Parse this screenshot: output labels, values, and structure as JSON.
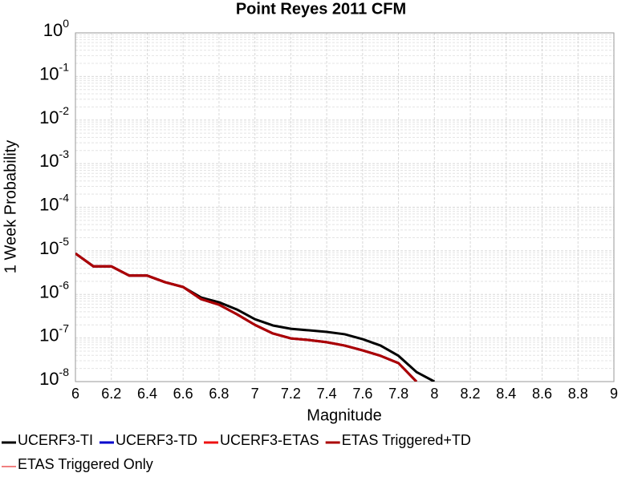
{
  "chart_data": {
    "type": "line",
    "title": "Point Reyes 2011 CFM",
    "x_label": "Magnitude",
    "y_label": "1 Week Probability",
    "x": [
      6.0,
      6.1,
      6.2,
      6.3,
      6.4,
      6.5,
      6.6,
      6.7,
      6.8,
      6.9,
      7.0,
      7.1,
      7.2,
      7.3,
      7.4,
      7.5,
      7.6,
      7.7,
      7.8,
      7.9,
      8.0
    ],
    "series": [
      {
        "name": "UCERF3-TI",
        "color": "#000000",
        "values": [
          8.7e-06,
          4.4e-06,
          4.4e-06,
          2.7e-06,
          2.7e-06,
          1.9e-06,
          1.48e-06,
          8.5e-07,
          6.6e-07,
          4.5e-07,
          2.7e-07,
          1.94e-07,
          1.63e-07,
          1.5e-07,
          1.38e-07,
          1.22e-07,
          9.4e-08,
          6.7e-08,
          3.9e-08,
          1.66e-08,
          1e-08
        ]
      },
      {
        "name": "UCERF3-TD",
        "color": "#0000cc",
        "values": [
          8.7e-06,
          4.4e-06,
          4.4e-06,
          2.7e-06,
          2.7e-06,
          1.9e-06,
          1.48e-06,
          7.8e-07,
          5.8e-07,
          3.5e-07,
          2e-07,
          1.27e-07,
          9.8e-08,
          9e-08,
          8e-08,
          6.7e-08,
          5.2e-08,
          3.9e-08,
          2.65e-08,
          1e-08,
          null
        ]
      },
      {
        "name": "UCERF3-ETAS",
        "color": "#ee1111",
        "values": [
          8.7e-06,
          4.4e-06,
          4.4e-06,
          2.7e-06,
          2.7e-06,
          1.9e-06,
          1.48e-06,
          7.8e-07,
          5.8e-07,
          3.5e-07,
          2e-07,
          1.27e-07,
          9.8e-08,
          9e-08,
          8e-08,
          6.7e-08,
          5.2e-08,
          3.9e-08,
          2.65e-08,
          1e-08,
          null
        ]
      },
      {
        "name": "ETAS Triggered+TD",
        "color": "#aa0000",
        "values": [
          8.7e-06,
          4.4e-06,
          4.4e-06,
          2.7e-06,
          2.7e-06,
          1.9e-06,
          1.48e-06,
          7.8e-07,
          5.8e-07,
          3.5e-07,
          2e-07,
          1.27e-07,
          9.8e-08,
          9e-08,
          8e-08,
          6.7e-08,
          5.2e-08,
          3.9e-08,
          2.65e-08,
          1e-08,
          null
        ]
      },
      {
        "name": "ETAS Triggered Only",
        "color": "#f08080",
        "values": [
          null,
          null,
          null,
          null,
          null,
          null,
          null,
          null,
          null,
          null,
          null,
          null,
          null,
          null,
          null,
          null,
          null,
          null,
          null,
          null,
          null
        ]
      }
    ],
    "xlim": [
      6,
      9
    ],
    "xticks": [
      6,
      {
        "value": 6.2,
        "label": "6.2"
      },
      {
        "value": 6.4,
        "label": "6.4"
      },
      {
        "value": 6.6,
        "label": "6.6"
      },
      {
        "value": 6.8,
        "label": "6.8"
      },
      7,
      {
        "value": 7.2,
        "label": "7.2"
      },
      {
        "value": 7.4,
        "label": "7.4"
      },
      {
        "value": 7.6,
        "label": "7.6"
      },
      {
        "value": 7.8,
        "label": "7.8"
      },
      8,
      {
        "value": 8.2,
        "label": "8.2"
      },
      {
        "value": 8.4,
        "label": "8.4"
      },
      {
        "value": 8.6,
        "label": "8.6"
      },
      {
        "value": 8.8,
        "label": "8.8"
      },
      9
    ],
    "ylim": [
      1e-08,
      1
    ],
    "log_y": true,
    "yticks": [
      {
        "value": 1e-08,
        "label": "10^-8"
      },
      {
        "value": 1e-07,
        "label": "10^-7"
      },
      {
        "value": 1e-06,
        "label": "10^-6"
      },
      {
        "value": 1e-05,
        "label": "10^-5"
      },
      {
        "value": 0.0001,
        "label": "10^-4"
      },
      {
        "value": 0.001,
        "label": "10^-3"
      },
      {
        "value": 0.01,
        "label": "10^-2"
      },
      {
        "value": 0.1,
        "label": "10^-1"
      },
      {
        "value": 1,
        "label": "10^0"
      }
    ],
    "grid": true,
    "legend": "bottom"
  }
}
